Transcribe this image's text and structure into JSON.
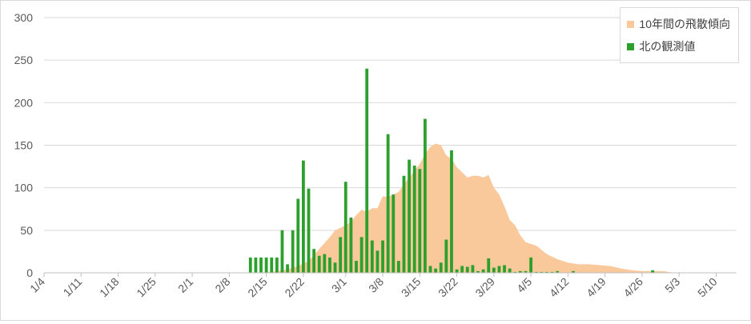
{
  "chart_data": {
    "type": "bar",
    "title": "",
    "xlabel": "",
    "ylabel": "",
    "ylim": [
      0,
      300
    ],
    "yticks": [
      0,
      50,
      100,
      150,
      200,
      250,
      300
    ],
    "grid": true,
    "legend_position": "top-right",
    "categories": [
      "1/4",
      "1/11",
      "1/18",
      "1/25",
      "2/1",
      "2/8",
      "2/15",
      "2/22",
      "3/1",
      "3/8",
      "3/15",
      "3/22",
      "3/29",
      "4/5",
      "4/12",
      "4/19",
      "4/26",
      "5/3",
      "5/10"
    ],
    "series": [
      {
        "name": "10年間の飛散傾向",
        "kind": "area",
        "color": "#f9c89b",
        "x": [
          "2/11",
          "2/13",
          "2/15",
          "2/17",
          "2/19",
          "2/21",
          "2/23",
          "2/25",
          "2/27",
          "2/28",
          "3/1",
          "3/2",
          "3/3",
          "3/4",
          "3/5",
          "3/6",
          "3/7",
          "3/8",
          "3/9",
          "3/10",
          "3/11",
          "3/12",
          "3/13",
          "3/14",
          "3/15",
          "3/16",
          "3/17",
          "3/18",
          "3/19",
          "3/20",
          "3/21",
          "3/22",
          "3/23",
          "3/24",
          "3/25",
          "3/26",
          "3/27",
          "3/28",
          "3/29",
          "3/30",
          "3/31",
          "4/1",
          "4/2",
          "4/3",
          "4/4",
          "4/5",
          "4/6",
          "4/8",
          "4/10",
          "4/12",
          "4/14",
          "4/16",
          "4/18",
          "4/20",
          "4/22",
          "4/24",
          "4/26",
          "4/28",
          "4/30",
          "5/2"
        ],
        "values": [
          0,
          0,
          1,
          2,
          4,
          8,
          14,
          28,
          42,
          50,
          56,
          60,
          68,
          74,
          72,
          76,
          76,
          90,
          89,
          92,
          95,
          104,
          112,
          120,
          128,
          140,
          148,
          152,
          150,
          138,
          134,
          124,
          118,
          112,
          114,
          114,
          112,
          115,
          100,
          92,
          78,
          62,
          56,
          44,
          36,
          34,
          32,
          22,
          16,
          12,
          10,
          10,
          9,
          8,
          5,
          3,
          2,
          2,
          2,
          0
        ]
      },
      {
        "name": "北の観測値",
        "kind": "bar",
        "color": "#2ca02c",
        "x": [
          "2/12",
          "2/13",
          "2/14",
          "2/15",
          "2/16",
          "2/17",
          "2/18",
          "2/19",
          "2/20",
          "2/21",
          "2/22",
          "2/23",
          "2/24",
          "2/25",
          "2/26",
          "2/27",
          "2/28",
          "2/29",
          "3/1",
          "3/2",
          "3/3",
          "3/4",
          "3/5",
          "3/6",
          "3/7",
          "3/8",
          "3/9",
          "3/10",
          "3/11",
          "3/12",
          "3/13",
          "3/14",
          "3/15",
          "3/16",
          "3/17",
          "3/18",
          "3/19",
          "3/20",
          "3/21",
          "3/22",
          "3/23",
          "3/24",
          "3/25",
          "3/26",
          "3/27",
          "3/28",
          "3/29",
          "3/30",
          "3/31",
          "4/1",
          "4/2",
          "4/3",
          "4/4",
          "4/5",
          "4/6",
          "4/7",
          "4/8",
          "4/9",
          "4/10",
          "4/13",
          "4/28"
        ],
        "values": [
          18,
          18,
          18,
          18,
          18,
          18,
          50,
          10,
          50,
          87,
          132,
          99,
          28,
          20,
          22,
          18,
          12,
          42,
          107,
          65,
          14,
          42,
          240,
          38,
          26,
          38,
          163,
          92,
          14,
          114,
          133,
          126,
          122,
          181,
          8,
          5,
          12,
          39,
          144,
          4,
          8,
          7,
          9,
          2,
          4,
          17,
          6,
          8,
          9,
          5,
          1,
          2,
          2,
          18,
          1,
          1,
          1,
          1,
          2,
          2,
          3
        ]
      }
    ]
  }
}
